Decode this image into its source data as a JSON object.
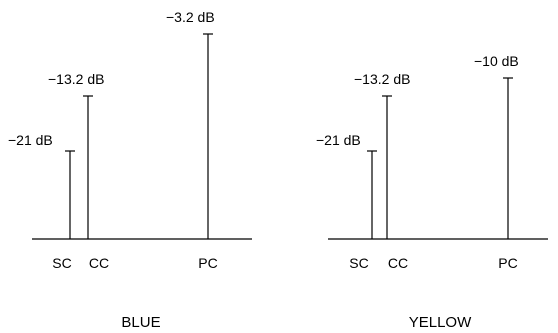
{
  "panels": [
    {
      "caption": "BLUE",
      "components": [
        {
          "label": "SC",
          "value_label": "−21 dB",
          "level_db": -21
        },
        {
          "label": "CC",
          "value_label": "−13.2 dB",
          "level_db": -13.2
        },
        {
          "label": "PC",
          "value_label": "−3.2 dB",
          "level_db": -3.2
        }
      ]
    },
    {
      "caption": "YELLOW",
      "components": [
        {
          "label": "SC",
          "value_label": "−21 dB",
          "level_db": -21
        },
        {
          "label": "CC",
          "value_label": "−13.2 dB",
          "level_db": -13.2
        },
        {
          "label": "PC",
          "value_label": "−10 dB",
          "level_db": -10
        }
      ]
    }
  ]
}
